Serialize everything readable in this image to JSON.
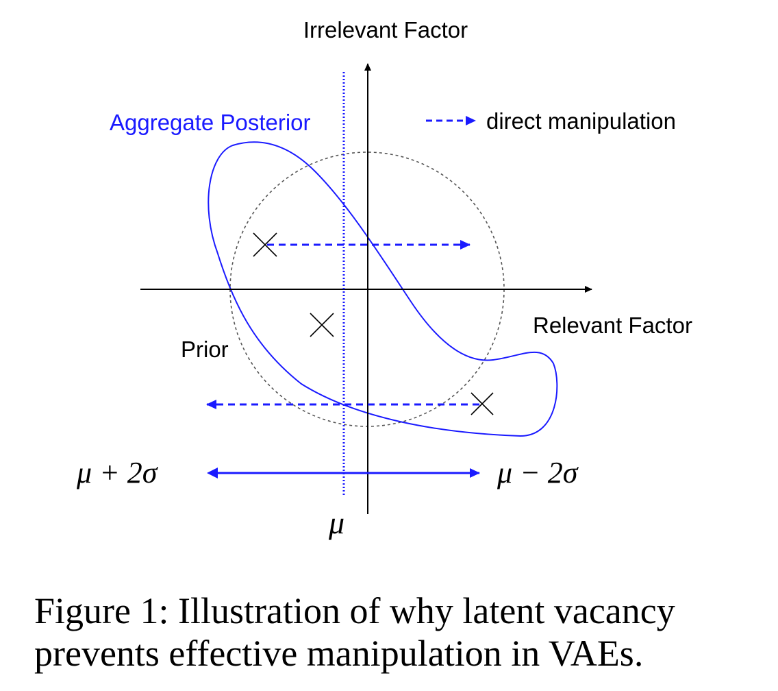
{
  "diagram": {
    "labels": {
      "y_axis": "Irrelevant Factor",
      "x_axis": "Relevant Factor",
      "aggregate_posterior": "Aggregate Posterior",
      "prior": "Prior",
      "legend_direct_manipulation": "direct manipulation",
      "mu_plus": "μ + 2σ",
      "mu_minus": "μ − 2σ",
      "mu": "μ"
    },
    "colors": {
      "posterior_blue": "#1a1aff",
      "arrow_blue": "#1a1aff",
      "axis": "#000000",
      "prior_circle": "#555555"
    }
  },
  "caption": {
    "line1": "Figure 1: Illustration of why latent vacancy",
    "line2": "prevents effective manipulation in VAEs."
  }
}
